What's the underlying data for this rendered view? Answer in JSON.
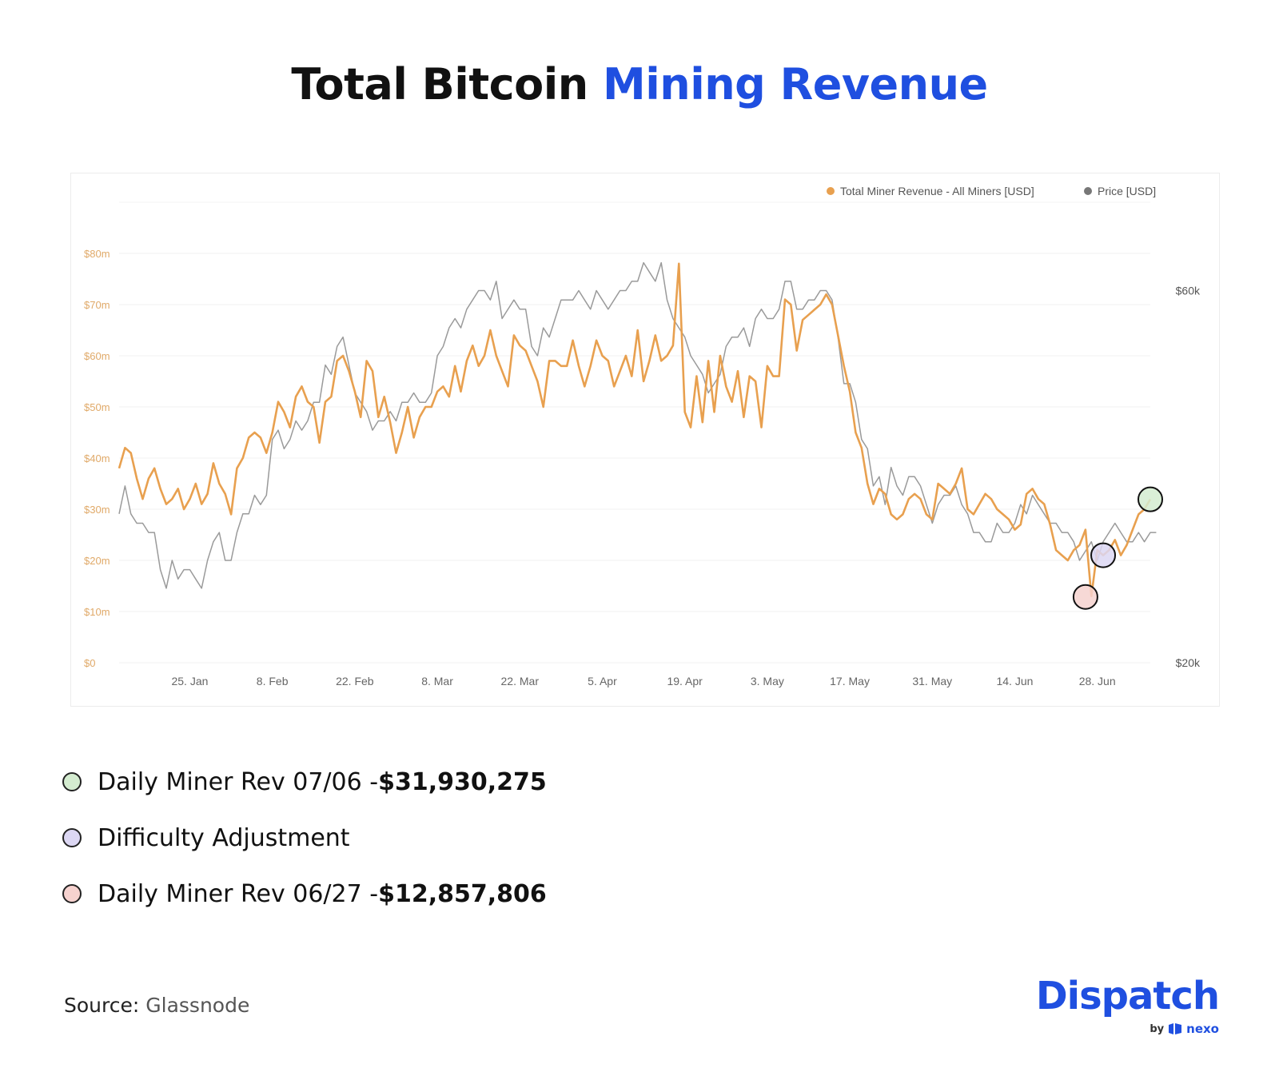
{
  "title": {
    "part1": "Total Bitcoin",
    "part2": "Mining Revenue",
    "accent_color": "#1f4fe0"
  },
  "chart_data": {
    "type": "line",
    "x_ticks": [
      "25. Jan",
      "8. Feb",
      "22. Feb",
      "8. Mar",
      "22. Mar",
      "5. Apr",
      "19. Apr",
      "3. May",
      "17. May",
      "31. May",
      "14. Jun",
      "28. Jun"
    ],
    "x_range": [
      "13. Jan",
      "7. Jul"
    ],
    "y_left_ticks": [
      "$0",
      "$10m",
      "$20m",
      "$30m",
      "$40m",
      "$50m",
      "$60m",
      "$70m",
      "$80m"
    ],
    "y_left_range": [
      0,
      80000000
    ],
    "y_right_ticks": [
      "$20k",
      "$60k"
    ],
    "y_right_range": [
      20000,
      64000
    ],
    "grid": true,
    "legend_position": "top-right",
    "series": [
      {
        "name": "Total Miner Revenue - All Miners [USD]",
        "axis": "left",
        "color": "#e8a04f",
        "unit": "USD",
        "values": [
          38,
          42,
          41,
          36,
          32,
          36,
          38,
          34,
          31,
          32,
          34,
          30,
          32,
          35,
          31,
          33,
          39,
          35,
          33,
          29,
          38,
          40,
          44,
          45,
          44,
          41,
          45,
          51,
          49,
          46,
          52,
          54,
          51,
          50,
          43,
          51,
          52,
          59,
          60,
          57,
          53,
          48,
          59,
          57,
          48,
          52,
          47,
          41,
          45,
          50,
          44,
          48,
          50,
          50,
          53,
          54,
          52,
          58,
          53,
          59,
          62,
          58,
          60,
          65,
          60,
          57,
          54,
          64,
          62,
          61,
          58,
          55,
          50,
          59,
          59,
          58,
          58,
          63,
          58,
          54,
          58,
          63,
          60,
          59,
          54,
          57,
          60,
          56,
          65,
          55,
          59,
          64,
          59,
          60,
          62,
          78,
          49,
          46,
          56,
          47,
          59,
          49,
          60,
          54,
          51,
          57,
          48,
          56,
          55,
          46,
          58,
          56,
          56,
          71,
          70,
          61,
          67,
          68,
          69,
          70,
          72,
          70,
          64,
          58,
          53,
          45,
          42,
          35,
          31,
          34,
          33,
          29,
          28,
          29,
          32,
          33,
          32,
          29,
          28,
          35,
          34,
          33,
          35,
          38,
          30,
          29,
          31,
          33,
          32,
          30,
          29,
          28,
          26,
          27,
          33,
          34,
          32,
          31,
          27,
          22,
          21,
          20,
          22,
          23,
          26,
          13,
          22,
          21,
          22,
          24,
          21,
          23,
          26,
          29,
          30,
          31.93
        ]
      },
      {
        "name": "Price [USD]",
        "axis": "right",
        "color": "#9a9a9a",
        "unit": "USD",
        "values": [
          36,
          39,
          36,
          35,
          35,
          34,
          34,
          30,
          28,
          31,
          29,
          30,
          30,
          29,
          28,
          31,
          33,
          34,
          31,
          31,
          34,
          36,
          36,
          38,
          37,
          38,
          44,
          45,
          43,
          44,
          46,
          45,
          46,
          48,
          48,
          52,
          51,
          54,
          55,
          52,
          49,
          48,
          47,
          45,
          46,
          46,
          47,
          46,
          48,
          48,
          49,
          48,
          48,
          49,
          53,
          54,
          56,
          57,
          56,
          58,
          59,
          60,
          60,
          59,
          61,
          57,
          58,
          59,
          58,
          58,
          54,
          53,
          56,
          55,
          57,
          59,
          59,
          59,
          60,
          59,
          58,
          60,
          59,
          58,
          59,
          60,
          60,
          61,
          61,
          63,
          62,
          61,
          63,
          59,
          57,
          56,
          55,
          53,
          52,
          51,
          49,
          50,
          51,
          54,
          55,
          55,
          56,
          54,
          57,
          58,
          57,
          57,
          58,
          61,
          61,
          58,
          58,
          59,
          59,
          60,
          60,
          59,
          55,
          50,
          50,
          48,
          44,
          43,
          39,
          40,
          37,
          41,
          39,
          38,
          40,
          40,
          39,
          37,
          35,
          37,
          38,
          38,
          39,
          37,
          36,
          34,
          34,
          33,
          33,
          35,
          34,
          34,
          35,
          37,
          36,
          38,
          37,
          36,
          35,
          35,
          34,
          34,
          33,
          31,
          32,
          33,
          31,
          33,
          34,
          35,
          34,
          33,
          33,
          34,
          33,
          34,
          34
        ]
      }
    ],
    "markers": [
      {
        "label": "Daily Miner Rev 07/06",
        "color": "#d4ecd0",
        "value": 31930275
      },
      {
        "label": "Difficulty Adjustment",
        "color": "#dcd7f3"
      },
      {
        "label": "Daily Miner Rev 06/27",
        "color": "#f6d2cf",
        "value": 12857806
      }
    ]
  },
  "legend_list": [
    {
      "text": "Daily Miner Rev 07/06 - ",
      "value": "$31,930,275",
      "color": "#d4ecd0"
    },
    {
      "text": "Difficulty Adjustment",
      "value": "",
      "color": "#dcd7f3"
    },
    {
      "text": "Daily Miner Rev 06/27 - ",
      "value": "$12,857,806",
      "color": "#f6d2cf"
    }
  ],
  "source": {
    "label": "Source:",
    "name": "Glassnode"
  },
  "brand": {
    "name": "Dispatch",
    "by": "by",
    "partner": "nexo",
    "color": "#1f4fe0"
  }
}
